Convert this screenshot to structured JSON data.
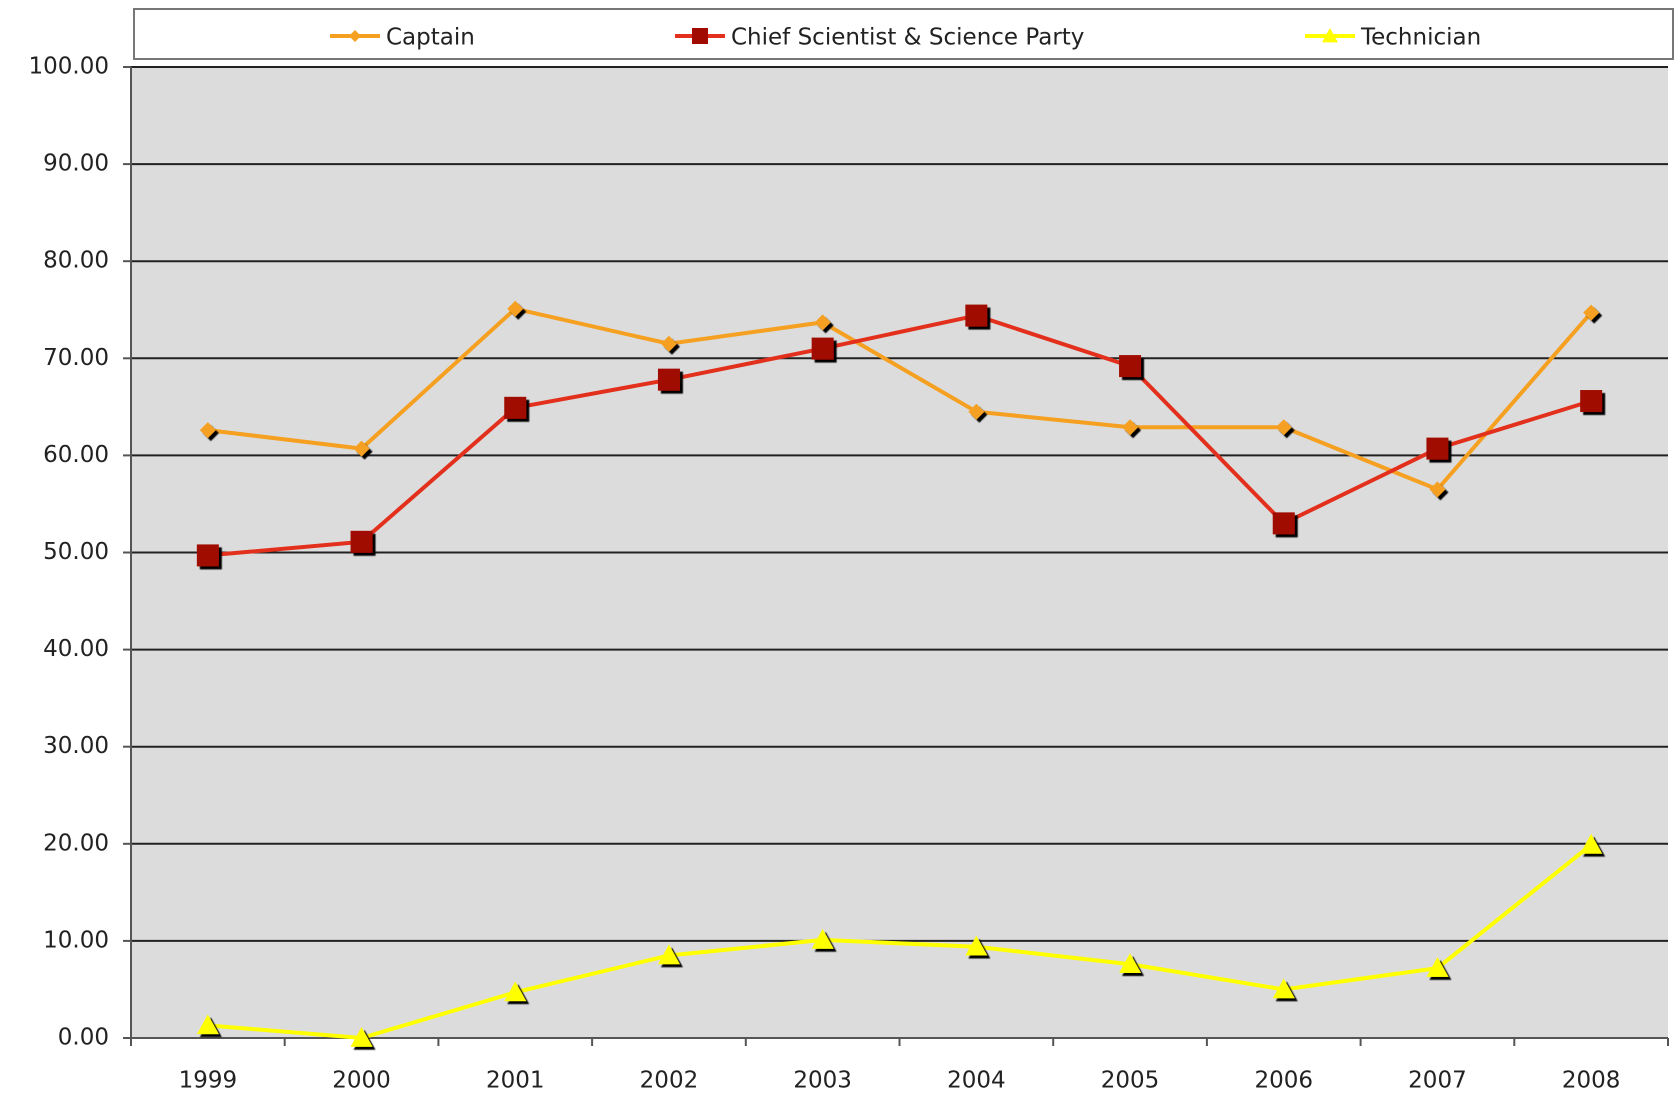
{
  "chart_data": {
    "type": "line",
    "categories": [
      "1999",
      "2000",
      "2001",
      "2002",
      "2003",
      "2004",
      "2005",
      "2006",
      "2007",
      "2008"
    ],
    "series": [
      {
        "name": "Captain",
        "color": "#f5a020",
        "marker": "diamond",
        "marker_color": "#f5a020",
        "values": [
          62.6,
          60.7,
          75.1,
          71.5,
          73.7,
          64.5,
          62.9,
          62.9,
          56.5,
          74.7
        ]
      },
      {
        "name": "Chief Scientist & Science Party",
        "color": "#e3301c",
        "marker": "square",
        "marker_color": "#a00a00",
        "values": [
          49.7,
          51.1,
          64.9,
          67.8,
          71.0,
          74.4,
          69.2,
          53.0,
          60.7,
          65.6
        ]
      },
      {
        "name": "Technician",
        "color": "#ffff00",
        "marker": "triangle",
        "marker_color": "#ffff00",
        "values": [
          1.3,
          0,
          4.7,
          8.5,
          10.1,
          9.4,
          7.6,
          5.0,
          7.2,
          19.9
        ]
      }
    ],
    "ylim": [
      0,
      100
    ],
    "yticks": [
      {
        "value": 0,
        "label": "0.00"
      },
      {
        "value": 10,
        "label": "10.00"
      },
      {
        "value": 20,
        "label": "20.00"
      },
      {
        "value": 30,
        "label": "30.00"
      },
      {
        "value": 40,
        "label": "40.00"
      },
      {
        "value": 50,
        "label": "50.00"
      },
      {
        "value": 60,
        "label": "60.00"
      },
      {
        "value": 70,
        "label": "70.00"
      },
      {
        "value": 80,
        "label": "80.00"
      },
      {
        "value": 90,
        "label": "90.00"
      },
      {
        "value": 100,
        "label": "100.00"
      }
    ],
    "grid": true,
    "legend": "top"
  }
}
